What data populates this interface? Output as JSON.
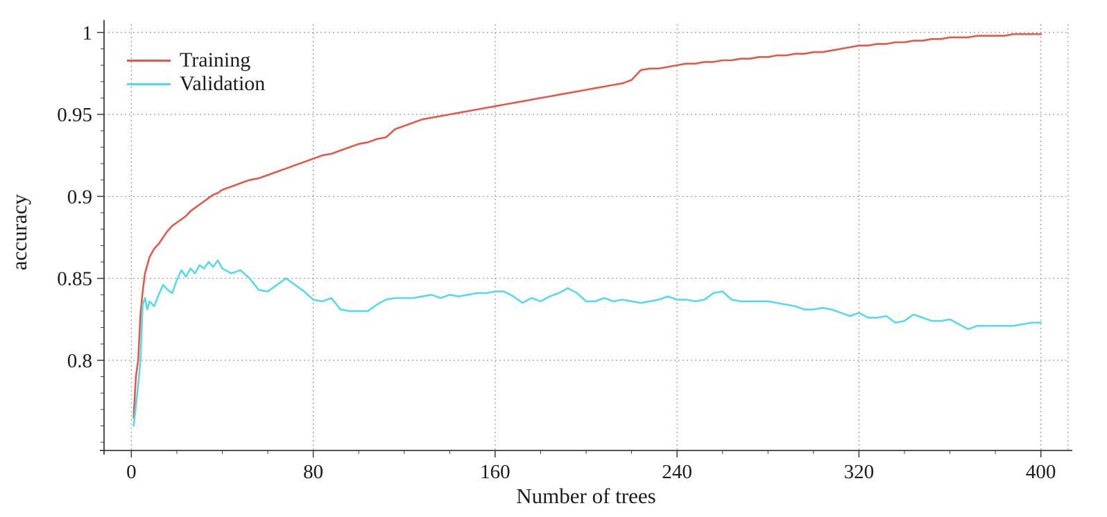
{
  "chart_data": {
    "type": "line",
    "title": "",
    "xlabel": "Number of trees",
    "ylabel": "accuracy",
    "xlim": [
      -12,
      412
    ],
    "ylim": [
      0.745,
      1.005
    ],
    "xticks": [
      0,
      80,
      160,
      240,
      320,
      400
    ],
    "xtick_labels": [
      "0",
      "80",
      "160",
      "240",
      "320",
      "400"
    ],
    "yticks": [
      0.8,
      0.85,
      0.9,
      0.95,
      1
    ],
    "ytick_labels": [
      "0.8",
      "0.85",
      "0.9",
      "0.95",
      "1"
    ],
    "x_minor_step": 20,
    "y_minor_step": 0.01,
    "grid": true,
    "grid_style": "dotted",
    "grid_color": "#808080",
    "axis_color": "#3a3a3a",
    "legend_position": "top-left",
    "x": [
      1,
      2,
      3,
      4,
      5,
      6,
      7,
      8,
      10,
      12,
      14,
      16,
      18,
      20,
      22,
      24,
      26,
      28,
      30,
      32,
      34,
      36,
      38,
      40,
      44,
      48,
      52,
      56,
      60,
      64,
      68,
      72,
      76,
      80,
      84,
      88,
      92,
      96,
      100,
      104,
      108,
      112,
      116,
      120,
      124,
      128,
      132,
      136,
      140,
      144,
      148,
      152,
      156,
      160,
      164,
      168,
      172,
      176,
      180,
      184,
      188,
      192,
      196,
      200,
      204,
      208,
      212,
      216,
      220,
      224,
      228,
      232,
      236,
      240,
      244,
      248,
      252,
      256,
      260,
      264,
      268,
      272,
      276,
      280,
      284,
      288,
      292,
      296,
      300,
      304,
      308,
      312,
      316,
      320,
      324,
      328,
      332,
      336,
      340,
      344,
      348,
      352,
      356,
      360,
      364,
      368,
      372,
      376,
      380,
      384,
      388,
      392,
      396,
      400
    ],
    "series": [
      {
        "name": "Training",
        "color": "#e4584c",
        "y": [
          0.765,
          0.79,
          0.8,
          0.828,
          0.842,
          0.853,
          0.858,
          0.863,
          0.868,
          0.871,
          0.875,
          0.879,
          0.882,
          0.884,
          0.886,
          0.888,
          0.891,
          0.893,
          0.895,
          0.897,
          0.899,
          0.901,
          0.902,
          0.904,
          0.906,
          0.908,
          0.91,
          0.911,
          0.913,
          0.915,
          0.917,
          0.919,
          0.921,
          0.923,
          0.925,
          0.926,
          0.928,
          0.93,
          0.932,
          0.933,
          0.935,
          0.936,
          0.941,
          0.943,
          0.945,
          0.947,
          0.948,
          0.949,
          0.95,
          0.951,
          0.952,
          0.953,
          0.954,
          0.955,
          0.956,
          0.957,
          0.958,
          0.959,
          0.96,
          0.961,
          0.962,
          0.963,
          0.964,
          0.965,
          0.966,
          0.967,
          0.968,
          0.969,
          0.971,
          0.977,
          0.978,
          0.978,
          0.979,
          0.98,
          0.981,
          0.981,
          0.982,
          0.982,
          0.983,
          0.983,
          0.984,
          0.984,
          0.985,
          0.985,
          0.986,
          0.986,
          0.987,
          0.987,
          0.988,
          0.988,
          0.989,
          0.99,
          0.991,
          0.992,
          0.992,
          0.993,
          0.993,
          0.994,
          0.994,
          0.995,
          0.995,
          0.996,
          0.996,
          0.997,
          0.997,
          0.997,
          0.998,
          0.998,
          0.998,
          0.998,
          0.999,
          0.999,
          0.999,
          0.999
        ]
      },
      {
        "name": "Validation",
        "color": "#56d9ea",
        "y": [
          0.76,
          0.772,
          0.785,
          0.8,
          0.834,
          0.838,
          0.831,
          0.836,
          0.833,
          0.84,
          0.846,
          0.843,
          0.841,
          0.849,
          0.855,
          0.851,
          0.856,
          0.853,
          0.858,
          0.856,
          0.86,
          0.857,
          0.861,
          0.856,
          0.853,
          0.855,
          0.85,
          0.843,
          0.842,
          0.846,
          0.85,
          0.846,
          0.842,
          0.837,
          0.836,
          0.838,
          0.831,
          0.83,
          0.83,
          0.83,
          0.834,
          0.837,
          0.838,
          0.838,
          0.838,
          0.839,
          0.84,
          0.838,
          0.84,
          0.839,
          0.84,
          0.841,
          0.841,
          0.842,
          0.842,
          0.839,
          0.835,
          0.838,
          0.836,
          0.839,
          0.841,
          0.844,
          0.841,
          0.836,
          0.836,
          0.838,
          0.836,
          0.837,
          0.836,
          0.835,
          0.836,
          0.837,
          0.839,
          0.837,
          0.837,
          0.836,
          0.837,
          0.841,
          0.842,
          0.837,
          0.836,
          0.836,
          0.836,
          0.836,
          0.835,
          0.834,
          0.833,
          0.831,
          0.831,
          0.832,
          0.831,
          0.829,
          0.827,
          0.829,
          0.826,
          0.826,
          0.827,
          0.823,
          0.824,
          0.828,
          0.826,
          0.824,
          0.824,
          0.825,
          0.822,
          0.819,
          0.821,
          0.821,
          0.821,
          0.821,
          0.821,
          0.822,
          0.823,
          0.823
        ]
      }
    ]
  }
}
